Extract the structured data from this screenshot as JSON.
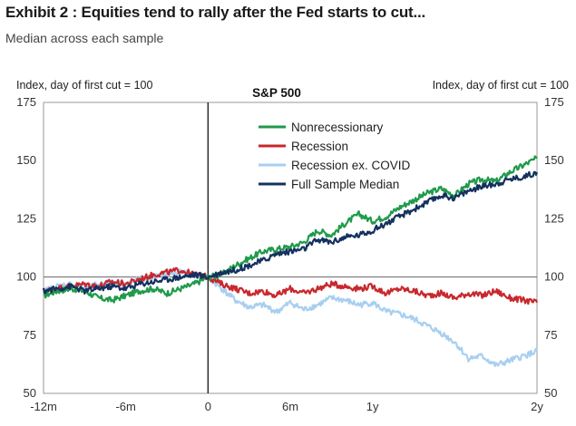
{
  "header": {
    "title": "Exhibit 2 : Equities tend to rally after the Fed starts to cut...",
    "subtitle": "Median across each sample"
  },
  "chart_data": {
    "type": "line",
    "title": "S&P 500",
    "ylabel_left": "Index, day of first cut = 100",
    "ylabel_right": "Index, day of first cut = 100",
    "xlabel": "",
    "xlim": [
      -12,
      24
    ],
    "ylim": [
      50,
      175
    ],
    "yticks": [
      50,
      75,
      100,
      125,
      150,
      175
    ],
    "xticks": [
      {
        "value": -12,
        "label": "-12m"
      },
      {
        "value": -6,
        "label": "-6m"
      },
      {
        "value": 0,
        "label": "0"
      },
      {
        "value": 6,
        "label": "6m"
      },
      {
        "value": 12,
        "label": "1y"
      },
      {
        "value": 24,
        "label": "2y"
      }
    ],
    "reference_lines": {
      "y": 100,
      "x": 0
    },
    "legend_position": "top-center",
    "series": [
      {
        "name": "Nonrecessionary",
        "color": "#1f9a4a",
        "x": [
          -12,
          -11,
          -10,
          -9,
          -8,
          -7,
          -6,
          -5,
          -4,
          -3,
          -2,
          -1,
          0,
          1,
          2,
          3,
          4,
          5,
          6,
          7,
          8,
          9,
          10,
          11,
          12,
          13,
          14,
          15,
          16,
          17,
          18,
          19,
          20,
          21,
          22,
          23,
          24
        ],
        "y": [
          92,
          94,
          95,
          94,
          91,
          90,
          92,
          94,
          95,
          93,
          95,
          97,
          100,
          101,
          105,
          108,
          111,
          112,
          113,
          115,
          120,
          118,
          123,
          127,
          124,
          126,
          130,
          133,
          136,
          138,
          135,
          140,
          142,
          141,
          145,
          148,
          151
        ]
      },
      {
        "name": "Recession",
        "color": "#c8282d",
        "x": [
          -12,
          -11,
          -10,
          -9,
          -8,
          -7,
          -6,
          -5,
          -4,
          -3,
          -2,
          -1,
          0,
          1,
          2,
          3,
          4,
          5,
          6,
          7,
          8,
          9,
          10,
          11,
          12,
          13,
          14,
          15,
          16,
          17,
          18,
          19,
          20,
          21,
          22,
          23,
          24
        ],
        "y": [
          94,
          95,
          96,
          97,
          96,
          98,
          97,
          99,
          101,
          102,
          103,
          101,
          100,
          97,
          95,
          93,
          94,
          92,
          95,
          93,
          95,
          97,
          96,
          95,
          96,
          93,
          95,
          94,
          92,
          93,
          91,
          93,
          92,
          94,
          91,
          90,
          89
        ]
      },
      {
        "name": "Recession ex. COVID",
        "color": "#a8cff0",
        "x": [
          -12,
          -11,
          -10,
          -9,
          -8,
          -7,
          -6,
          -5,
          -4,
          -3,
          -2,
          -1,
          0,
          1,
          2,
          3,
          4,
          5,
          6,
          7,
          8,
          9,
          10,
          11,
          12,
          13,
          14,
          15,
          16,
          17,
          18,
          19,
          20,
          21,
          22,
          23,
          24
        ],
        "y": [
          94,
          96,
          97,
          95,
          97,
          98,
          97,
          99,
          100,
          101,
          102,
          101,
          100,
          95,
          90,
          87,
          88,
          85,
          89,
          86,
          88,
          91,
          90,
          88,
          89,
          85,
          84,
          82,
          79,
          76,
          72,
          65,
          66,
          62,
          64,
          66,
          68
        ]
      },
      {
        "name": "Full Sample Median",
        "color": "#14315f",
        "x": [
          -12,
          -11,
          -10,
          -9,
          -8,
          -7,
          -6,
          -5,
          -4,
          -3,
          -2,
          -1,
          0,
          1,
          2,
          3,
          4,
          5,
          6,
          7,
          8,
          9,
          10,
          11,
          12,
          13,
          14,
          15,
          16,
          17,
          18,
          19,
          20,
          21,
          22,
          23,
          24
        ],
        "y": [
          94,
          95,
          96,
          94,
          95,
          96,
          95,
          97,
          98,
          99,
          100,
          101,
          100,
          102,
          103,
          105,
          107,
          110,
          111,
          112,
          116,
          115,
          117,
          118,
          120,
          123,
          126,
          129,
          132,
          135,
          134,
          137,
          139,
          140,
          142,
          143,
          145
        ]
      }
    ]
  }
}
